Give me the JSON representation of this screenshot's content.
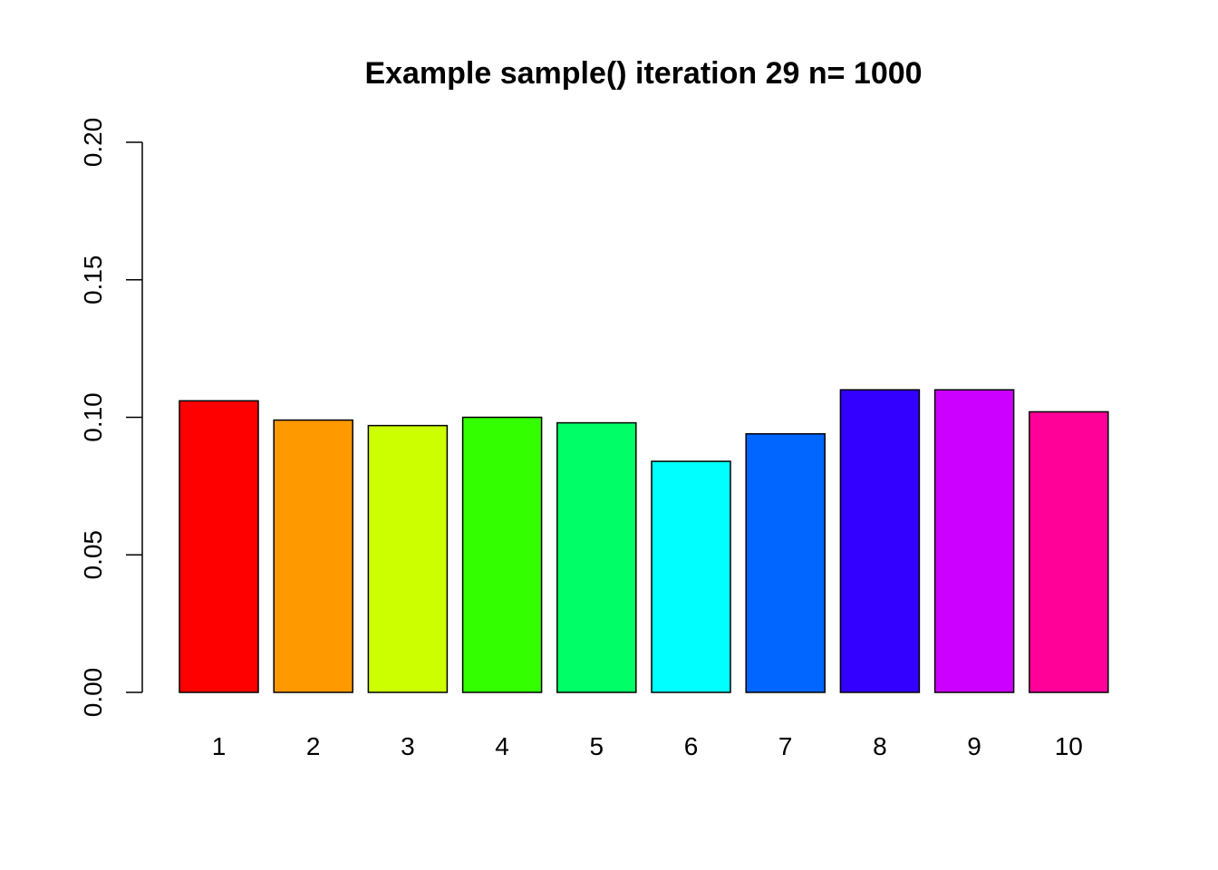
{
  "chart_data": {
    "type": "bar",
    "title": "Example sample() iteration 29 n= 1000",
    "xlabel": "",
    "ylabel": "",
    "categories": [
      "1",
      "2",
      "3",
      "4",
      "5",
      "6",
      "7",
      "8",
      "9",
      "10"
    ],
    "values": [
      0.106,
      0.099,
      0.097,
      0.1,
      0.098,
      0.084,
      0.094,
      0.11,
      0.11,
      0.102
    ],
    "colors": [
      "#FF0000",
      "#FF9900",
      "#CCFF00",
      "#33FF00",
      "#00FF66",
      "#00FFFF",
      "#0066FF",
      "#3300FF",
      "#CC00FF",
      "#FF0099"
    ],
    "ylim": [
      0,
      0.2
    ],
    "yticks": [
      "0.00",
      "0.05",
      "0.10",
      "0.15",
      "0.20"
    ],
    "grid": false,
    "legend": "none"
  }
}
